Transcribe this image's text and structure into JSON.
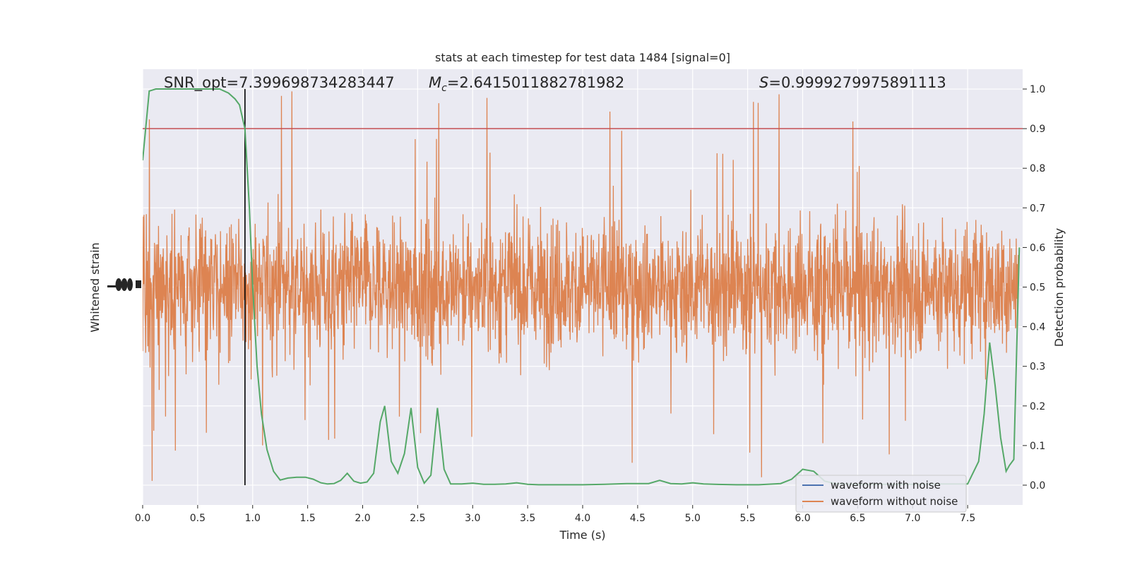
{
  "chart_data": {
    "type": "line",
    "title": "stats at each timestep for test data 1484 [signal=0]",
    "xlabel": "Time (s)",
    "ylabel_left": "Whitened strain",
    "ylabel_right": "Detection probability",
    "xlim": [
      0.0,
      8.0
    ],
    "ylim_right": [
      -0.05,
      1.05
    ],
    "xticks": [
      "0.0",
      "0.5",
      "1.0",
      "1.5",
      "2.0",
      "2.5",
      "3.0",
      "3.5",
      "4.0",
      "4.5",
      "5.0",
      "5.5",
      "6.0",
      "6.5",
      "7.0",
      "7.5"
    ],
    "xtick_values": [
      0.0,
      0.5,
      1.0,
      1.5,
      2.0,
      2.5,
      3.0,
      3.5,
      4.0,
      4.5,
      5.0,
      5.5,
      6.0,
      6.5,
      7.0,
      7.5
    ],
    "yticks_right": [
      "0.0",
      "0.1",
      "0.2",
      "0.3",
      "0.4",
      "0.5",
      "0.6",
      "0.7",
      "0.8",
      "0.9",
      "1.0"
    ],
    "ytick_values_right": [
      0.0,
      0.1,
      0.2,
      0.3,
      0.4,
      0.5,
      0.6,
      0.7,
      0.8,
      0.9,
      1.0
    ],
    "grid": true,
    "annotations": {
      "snr": "SNR_opt=7.399698734283447",
      "mc_symbol": "M",
      "mc_sub": "c",
      "mc_value": "=2.6415011882781982",
      "s_symbol": "S",
      "s_value": "=0.9999279975891113"
    },
    "threshold": {
      "value": 0.9,
      "color": "#c44e52"
    },
    "vertical_marker": {
      "x": 0.93,
      "color": "#000000"
    },
    "series": [
      {
        "name": "waveform with noise",
        "color": "#4c72b0",
        "values": []
      },
      {
        "name": "waveform without noise",
        "color": "#dd8452",
        "style": "dense noisy strain band centered on 0.5, spikes up to 1.0 and down to 0.0"
      },
      {
        "color": "#55a868",
        "x": [
          0.0,
          0.06,
          0.12,
          0.2,
          0.3,
          0.4,
          0.5,
          0.6,
          0.7,
          0.78,
          0.84,
          0.88,
          0.93,
          0.97,
          1.0,
          1.04,
          1.08,
          1.13,
          1.19,
          1.25,
          1.32,
          1.4,
          1.48,
          1.55,
          1.62,
          1.68,
          1.74,
          1.8,
          1.86,
          1.92,
          1.98,
          2.04,
          2.1,
          2.16,
          2.2,
          2.26,
          2.32,
          2.38,
          2.44,
          2.5,
          2.56,
          2.62,
          2.68,
          2.74,
          2.8,
          2.9,
          3.0,
          3.1,
          3.2,
          3.3,
          3.4,
          3.5,
          3.6,
          3.8,
          4.0,
          4.2,
          4.4,
          4.6,
          4.7,
          4.8,
          4.9,
          5.0,
          5.1,
          5.2,
          5.4,
          5.6,
          5.8,
          5.9,
          6.0,
          6.1,
          6.2,
          6.3,
          6.4,
          6.5,
          6.6,
          6.8,
          7.0,
          7.2,
          7.4,
          7.5,
          7.6,
          7.65,
          7.7,
          7.75,
          7.8,
          7.85,
          7.88,
          7.92,
          7.97
        ],
        "values": [
          0.82,
          0.995,
          1.0,
          1.0,
          1.0,
          1.0,
          1.0,
          1.0,
          1.0,
          0.99,
          0.975,
          0.96,
          0.9,
          0.7,
          0.5,
          0.3,
          0.18,
          0.09,
          0.035,
          0.013,
          0.018,
          0.02,
          0.02,
          0.015,
          0.006,
          0.003,
          0.004,
          0.012,
          0.03,
          0.01,
          0.005,
          0.008,
          0.03,
          0.16,
          0.2,
          0.06,
          0.03,
          0.08,
          0.195,
          0.045,
          0.005,
          0.025,
          0.195,
          0.04,
          0.003,
          0.003,
          0.005,
          0.002,
          0.002,
          0.003,
          0.006,
          0.002,
          0.001,
          0.001,
          0.001,
          0.002,
          0.004,
          0.004,
          0.012,
          0.004,
          0.003,
          0.006,
          0.003,
          0.002,
          0.001,
          0.001,
          0.004,
          0.015,
          0.04,
          0.035,
          0.01,
          0.004,
          0.003,
          0.002,
          0.002,
          0.002,
          0.002,
          0.003,
          0.003,
          0.003,
          0.06,
          0.18,
          0.36,
          0.25,
          0.12,
          0.035,
          0.05,
          0.065,
          0.6
        ]
      }
    ],
    "legend_loc": "lower right"
  }
}
